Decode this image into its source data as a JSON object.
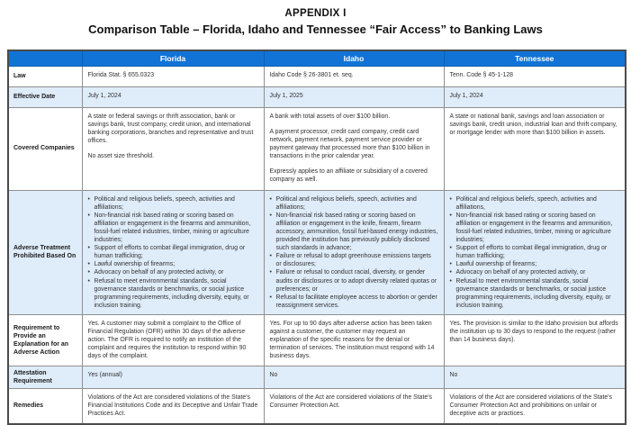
{
  "title": {
    "line1": "APPENDIX I",
    "line2": "Comparison Table – Florida, Idaho and Tennessee “Fair Access” to Banking Laws"
  },
  "colors": {
    "header_bg": "#1273d6",
    "header_text": "#ffffff",
    "row_alt_bg": "#dfecf9",
    "inner_border": "#8f8f8f",
    "outer_border": "#4b4b4b"
  },
  "table": {
    "header": [
      "",
      "Florida",
      "Idaho",
      "Tennessee"
    ],
    "rows": [
      {
        "label": "Law",
        "cells": [
          {
            "paragraphs": [
              "Florida Stat. § 655.0323"
            ]
          },
          {
            "paragraphs": [
              "Idaho Code § 26-3801 et. seq."
            ]
          },
          {
            "paragraphs": [
              "Tenn. Code § 45-1-128"
            ]
          }
        ]
      },
      {
        "label": "Effective Date",
        "cells": [
          {
            "paragraphs": [
              "July 1, 2024"
            ]
          },
          {
            "paragraphs": [
              "July 1, 2025"
            ]
          },
          {
            "paragraphs": [
              "July 1, 2024"
            ]
          }
        ]
      },
      {
        "label": "Covered Companies",
        "cells": [
          {
            "paragraphs": [
              "A state or federal savings or thrift association, bank or savings bank, trust company, credit union, and international banking corporations, branches and representative and trust offices.",
              "No asset size threshold."
            ]
          },
          {
            "paragraphs": [
              "A bank with total assets of over $100 billion.",
              "A payment processor, credit card company, credit card network, payment network, payment service provider or payment gateway that processed more than $100 billion in transactions in the prior calendar year.",
              "Expressly applies to an affiliate or subsidiary of a covered company as well."
            ]
          },
          {
            "paragraphs": [
              "A state or national bank, savings and loan association or savings bank, credit union, industrial loan and thrift company, or mortgage lender with more than $100 billion in assets."
            ]
          }
        ]
      },
      {
        "label": "Adverse Treatment Prohibited Based On",
        "cells": [
          {
            "bullets": [
              "Political and religious beliefs, speech, activities and affiliations;",
              "Non-financial risk based rating or scoring based on affiliation or engagement in the firearms and ammunition, fossil-fuel related industries, timber, mining or agriculture industries;",
              "Support of efforts to combat illegal immigration, drug or human trafficking;",
              "Lawful ownership of firearms;",
              "Advocacy on behalf of any protected activity, or",
              "Refusal to meet environmental standards, social governance standards or benchmarks, or social justice programming requirements, including diversity, equity, or inclusion training."
            ]
          },
          {
            "bullets": [
              "Political and religious beliefs, speech, activities and affiliations;",
              "Non-financial risk based rating or scoring based on affiliation or engagement in the knife, firearm, firearm accessory, ammunition, fossil fuel-based energy industries, provided the institution has previously publicly disclosed such standards in advance;",
              "Failure or refusal to adopt greenhouse emissions targets or disclosures;",
              "Failure or refusal to conduct racial, diversity, or gender audits or disclosures or to adopt diversity related quotas or preferences; or",
              "Refusal to facilitate employee access to abortion or gender reassignment services."
            ]
          },
          {
            "bullets": [
              "Political and religious beliefs, speech, activities and affiliations,",
              "Non-financial risk based rating or scoring based on affiliation or engagement in the firearms and ammunition, fossil-fuel related industries, timber, mining or agriculture industries;",
              "Support of efforts to combat illegal immigration, drug or human trafficking;",
              "Lawful ownership of firearms;",
              "Advocacy on behalf of any protected activity, or",
              "Refusal to meet environmental standards, social governance standards or benchmarks, or social justice programming requirements, including diversity, equity, or inclusion training."
            ]
          }
        ]
      },
      {
        "label": "Requirement to Provide an Explanation for an Adverse Action",
        "cells": [
          {
            "paragraphs": [
              "Yes. A customer may submit a complaint to the Office of Financial Regulation (OFR) within 30 days of the adverse action. The OFR is required to notify an institution of the complaint and requires the institution to respond within 90 days of the complaint."
            ]
          },
          {
            "paragraphs": [
              "Yes. For up to 90 days after adverse action has been taken against a customer, the customer may request an explanation of the specific reasons for the denial or termination of services. The institution must respond with 14 business days."
            ]
          },
          {
            "paragraphs": [
              "Yes. The provision is similar to the Idaho provision but affords the institution up to 30 days to respond to the request (rather than 14 business days)."
            ]
          }
        ]
      },
      {
        "label": "Attestation Requirement",
        "cells": [
          {
            "paragraphs": [
              "Yes (annual)"
            ]
          },
          {
            "paragraphs": [
              "No"
            ]
          },
          {
            "paragraphs": [
              "No"
            ]
          }
        ]
      },
      {
        "label": "Remedies",
        "cells": [
          {
            "paragraphs": [
              "Violations of the Act are considered violations of the State's Financial Institutions Code and its Deceptive and Unfair Trade Practices Act."
            ]
          },
          {
            "paragraphs": [
              "Violations of the Act are considered violations of the State's Consumer Protection Act."
            ]
          },
          {
            "paragraphs": [
              "Violations of the Act are considered violations of the State's Consumer Protection Act and prohibitions on unfair or deceptive acts or practices."
            ]
          }
        ]
      }
    ]
  }
}
